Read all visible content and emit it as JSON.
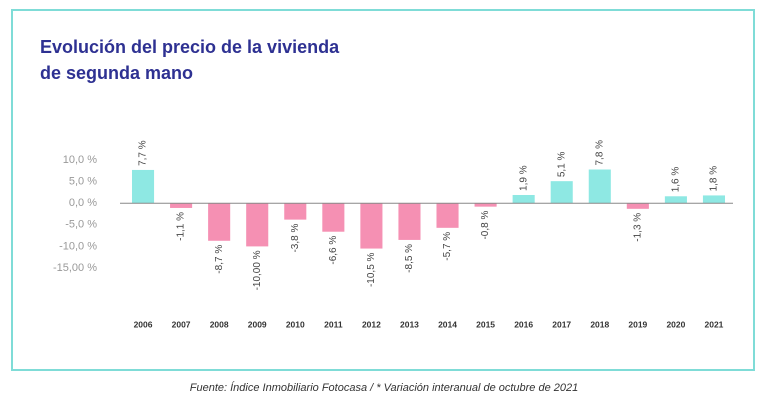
{
  "chart_data": {
    "type": "bar",
    "title": "Evolución del precio de la vivienda",
    "subtitle": "de segunda mano",
    "source": "Fuente: Índice Inmobiliario Fotocasa / * Variación interanual de octubre de 2021",
    "categories": [
      "2006",
      "2007",
      "2008",
      "2009",
      "2010",
      "2011",
      "2012",
      "2013",
      "2014",
      "2015",
      "2016",
      "2017",
      "2018",
      "2019",
      "2020",
      "2021"
    ],
    "values": [
      7.7,
      -1.1,
      -8.7,
      -10.0,
      -3.8,
      -6.6,
      -10.5,
      -8.5,
      -5.7,
      -0.8,
      1.9,
      5.1,
      7.8,
      -1.3,
      1.6,
      1.8
    ],
    "value_labels": [
      "7,7 %",
      "-1,1 %",
      "-8,7 %",
      "-10,00 %",
      "-3,8 %",
      "-6,6 %",
      "-10,5 %",
      "-8,5 %",
      "-5,7 %",
      "-0,8 %",
      "1,9 %",
      "5,1 %",
      "7,8 %",
      "-1,3 %",
      "1,6 %",
      "1,8 %"
    ],
    "positive_color": "#8ee8e3",
    "negative_color": "#f590b3",
    "ylim": [
      -15,
      10
    ],
    "yticks": [
      {
        "value": 10,
        "label": "10,0 %"
      },
      {
        "value": 5,
        "label": "5,0 %"
      },
      {
        "value": 0,
        "label": "0,0 %"
      },
      {
        "value": -5,
        "label": "-5,0 %"
      },
      {
        "value": -10,
        "label": "-10,0 %"
      },
      {
        "value": -15,
        "label": "-15,00 %"
      }
    ],
    "grid": false
  }
}
